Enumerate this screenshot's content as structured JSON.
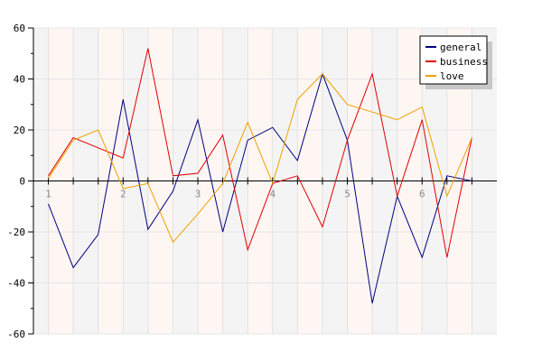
{
  "chart_data": {
    "type": "line",
    "ylim": [
      -60,
      60
    ],
    "yticks": [
      -60,
      -40,
      -20,
      0,
      20,
      40,
      60
    ],
    "xlim": [
      0.8,
      7.0
    ],
    "xticks": [
      "1",
      "2",
      "3",
      "4",
      "5",
      "6"
    ],
    "x": [
      1.0,
      1.333,
      1.667,
      2.0,
      2.333,
      2.667,
      3.0,
      3.333,
      3.667,
      4.0,
      4.333,
      4.667,
      5.0,
      5.333,
      5.667,
      6.0,
      6.333,
      6.667
    ],
    "grid": true,
    "background_bands": true,
    "legend_position": "top-right",
    "series": [
      {
        "name": "general",
        "color": "#00007f",
        "values": [
          -9,
          -34,
          -21,
          32,
          -19,
          -4,
          24,
          -20,
          16,
          21,
          8,
          42,
          16,
          -48,
          -6,
          -30,
          2,
          0
        ]
      },
      {
        "name": "business",
        "color": "#e00000",
        "values": [
          2,
          17,
          13,
          9,
          52,
          2,
          3,
          18,
          -27,
          -1,
          2,
          -18,
          16,
          42,
          -6,
          24,
          -30,
          17
        ]
      },
      {
        "name": "love",
        "color": "#f0a000",
        "values": [
          1,
          16,
          20,
          -3,
          -1,
          -24,
          -13,
          -1,
          23,
          -1,
          32,
          42,
          30,
          27,
          24,
          29,
          -6,
          17
        ]
      }
    ]
  }
}
